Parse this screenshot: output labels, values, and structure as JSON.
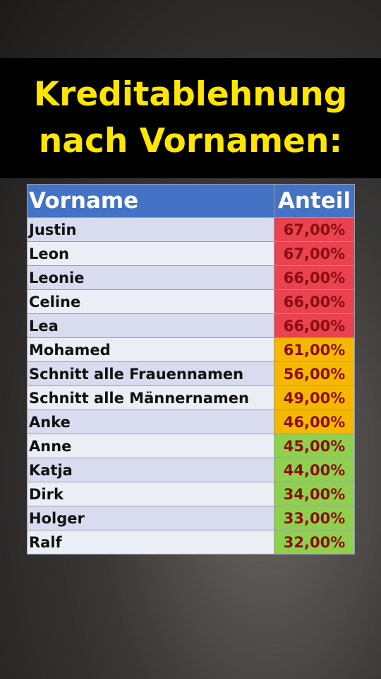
{
  "header": {
    "title": [
      "Kreditablehnung",
      "nach Vornamen:"
    ]
  },
  "table": {
    "columns": [
      "Vorname",
      "Anteil"
    ],
    "row_colors": [
      "#d9dcee",
      "#eceef6"
    ],
    "rows": [
      [
        "Justin",
        "67,00%"
      ],
      [
        "Leon",
        "67,00%"
      ],
      [
        "Leonie",
        "66,00%"
      ],
      [
        "Celine",
        "66,00%"
      ],
      [
        "Lea",
        "66,00%"
      ],
      [
        "Mohamed",
        "61,00%"
      ],
      [
        "Schnitt alle Frauennamen",
        "56,00%"
      ],
      [
        "Schnitt alle Männernamen",
        "49,00%"
      ],
      [
        "Anke",
        "46,00%"
      ],
      [
        "Anne",
        "45,00%"
      ],
      [
        "Katja",
        "44,00%"
      ],
      [
        "Dirk",
        "34,00%"
      ],
      [
        "Holger",
        "33,00%"
      ],
      [
        "Ralf",
        "32,00%"
      ]
    ],
    "value_colors": [
      "#e8434f",
      "#e8434f",
      "#e8434f",
      "#e8434f",
      "#e8434f",
      "#f5b800",
      "#f5b800",
      "#f5b800",
      "#f5b800",
      "#8fd14f",
      "#8fd14f",
      "#8fd14f",
      "#8fd14f",
      "#8fd14f"
    ]
  }
}
